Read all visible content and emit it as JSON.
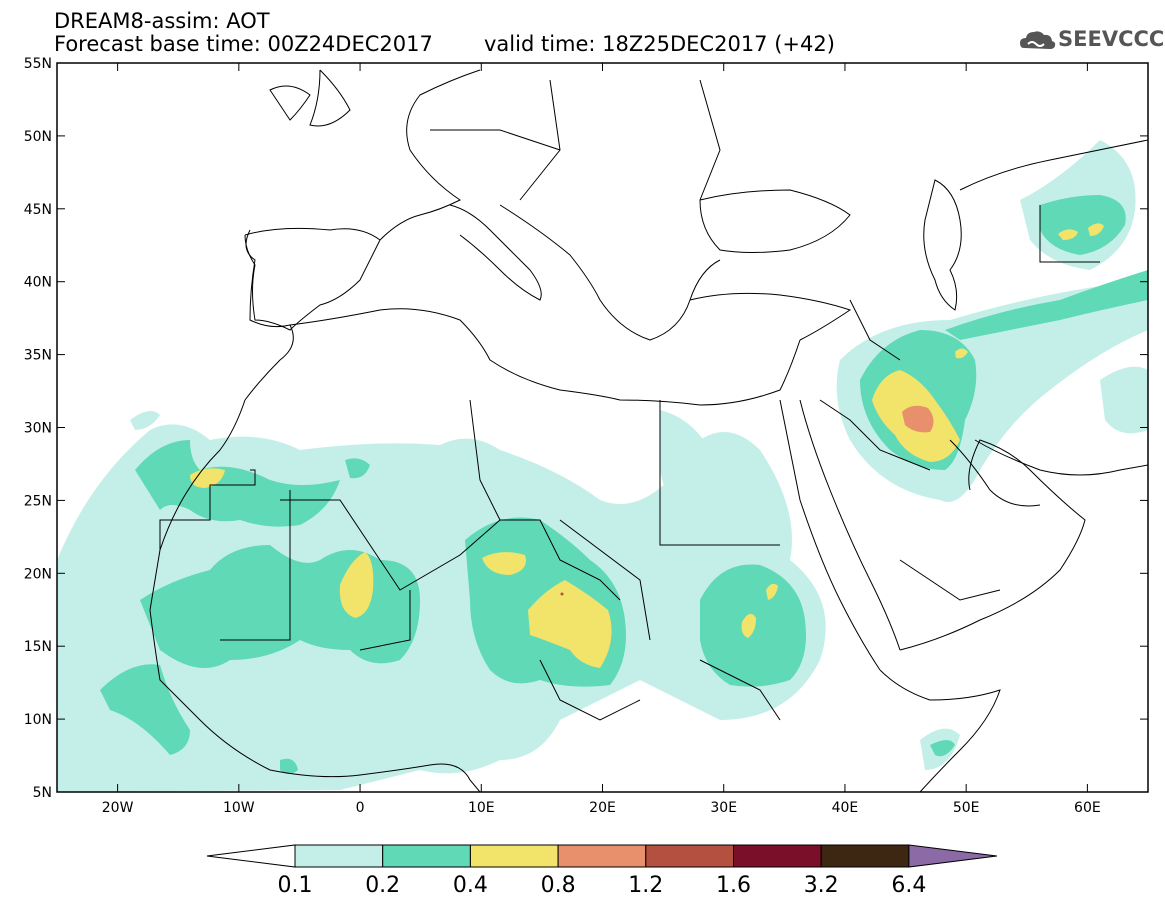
{
  "header": {
    "line1": "DREAM8-assim: AOT",
    "line2": "Forecast base time: 00Z24DEC2017",
    "line3": "valid time: 18Z25DEC2017 (+42)"
  },
  "logo": {
    "text": "SEEVCCC",
    "icon": "cloud-icon"
  },
  "map": {
    "lon_range": [
      -25,
      65
    ],
    "lat_range": [
      5,
      55
    ],
    "lat_labels": [
      "55N",
      "50N",
      "45N",
      "40N",
      "35N",
      "30N",
      "25N",
      "20N",
      "15N",
      "10N",
      "5N"
    ],
    "lon_labels": [
      "20W",
      "10W",
      "0",
      "10E",
      "20E",
      "30E",
      "40E",
      "50E",
      "60E"
    ]
  },
  "colorbar": {
    "levels": [
      "0.1",
      "0.2",
      "0.4",
      "0.8",
      "1.2",
      "1.6",
      "3.2",
      "6.4"
    ],
    "colors": [
      "#ffffff",
      "#c4efe9",
      "#5fd9b6",
      "#f2e46a",
      "#e8906b",
      "#b4503f",
      "#7a0f2a",
      "#3d2712",
      "#8b6aa6"
    ]
  }
}
